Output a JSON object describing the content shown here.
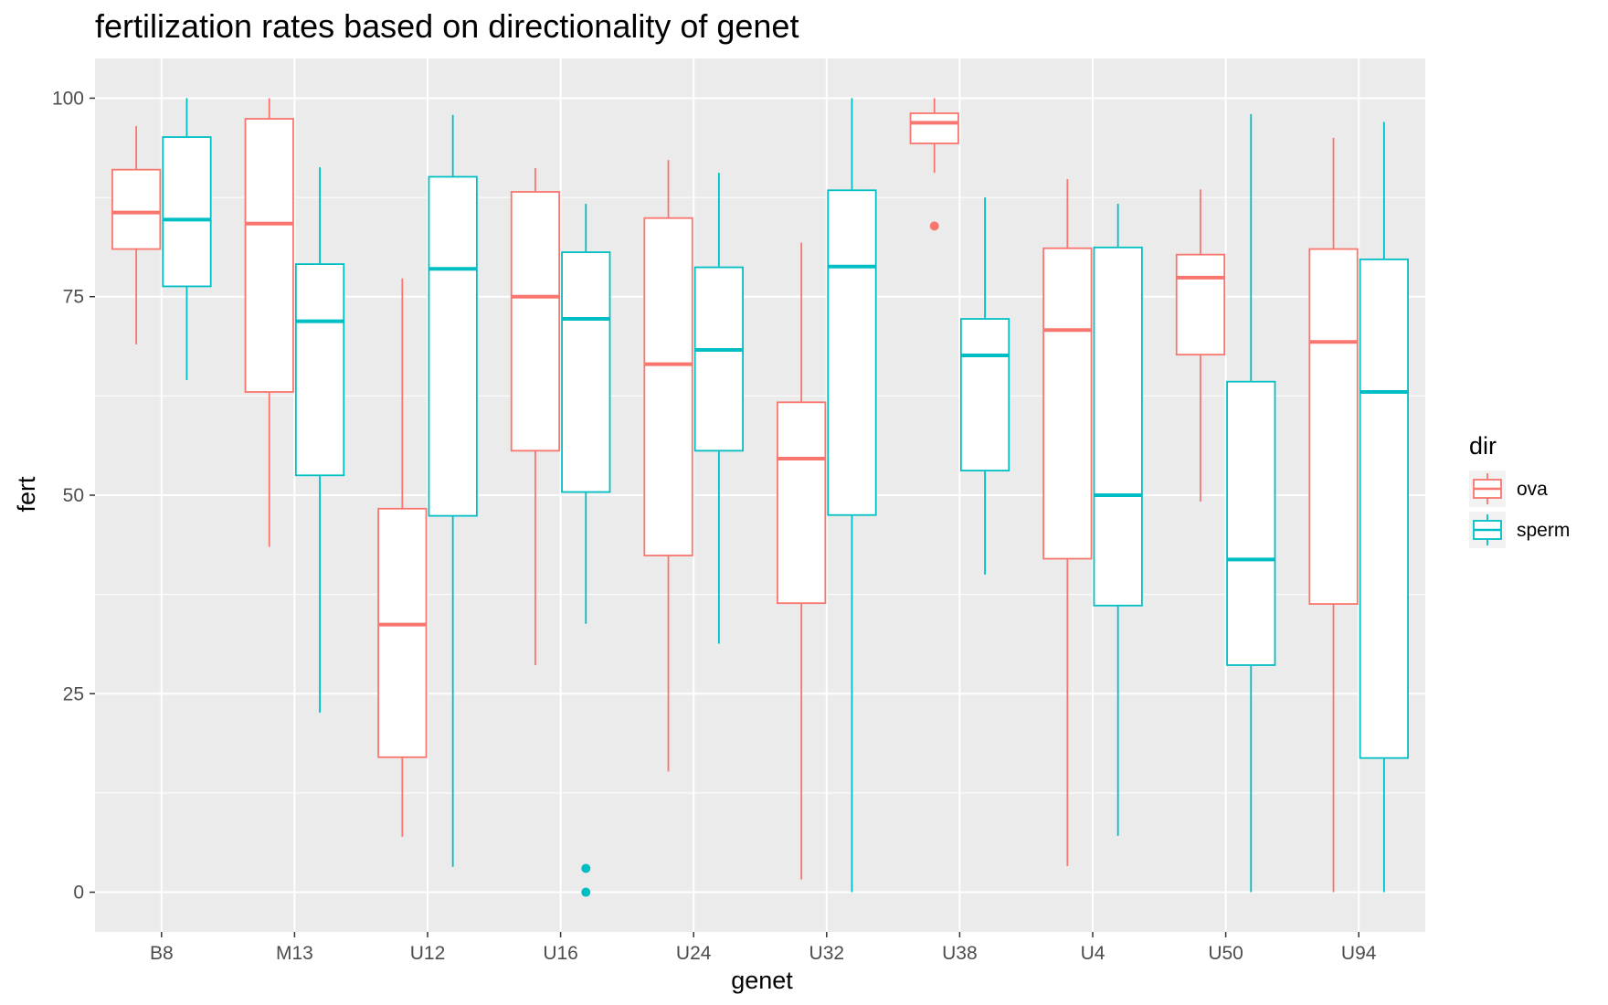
{
  "chart_data": {
    "type": "boxplot",
    "title": "fertilization rates based on directionality of genet",
    "xlabel": "genet",
    "ylabel": "fert",
    "ylim": [
      -5,
      105
    ],
    "yticks": [
      0,
      25,
      50,
      75,
      100
    ],
    "grid": true,
    "legend": {
      "title": "dir",
      "placement": "right",
      "entries": [
        "ova",
        "sperm"
      ]
    },
    "categories": [
      "B8",
      "M13",
      "U12",
      "U16",
      "U24",
      "U32",
      "U38",
      "U4",
      "U50",
      "U94"
    ],
    "series": [
      {
        "name": "ova",
        "color": "#F8766D",
        "boxes": [
          {
            "min": 69,
            "q1": 81,
            "median": 85.6,
            "q3": 91,
            "max": 96.5,
            "outliers": []
          },
          {
            "min": 43.5,
            "q1": 63,
            "median": 84.2,
            "q3": 97.4,
            "max": 100,
            "outliers": []
          },
          {
            "min": 7,
            "q1": 17,
            "median": 33.7,
            "q3": 48.3,
            "max": 77.3,
            "outliers": []
          },
          {
            "min": 28.6,
            "q1": 55.6,
            "median": 75,
            "q3": 88.2,
            "max": 91.2,
            "outliers": []
          },
          {
            "min": 15.2,
            "q1": 42.4,
            "median": 66.5,
            "q3": 84.9,
            "max": 92.2,
            "outliers": []
          },
          {
            "min": 1.6,
            "q1": 36.4,
            "median": 54.6,
            "q3": 61.7,
            "max": 81.8,
            "outliers": []
          },
          {
            "min": 90.6,
            "q1": 94.3,
            "median": 96.9,
            "q3": 98.1,
            "max": 100,
            "outliers": [
              83.9
            ]
          },
          {
            "min": 3.3,
            "q1": 42,
            "median": 70.8,
            "q3": 81.1,
            "max": 89.8,
            "outliers": []
          },
          {
            "min": 49.2,
            "q1": 67.7,
            "median": 77.4,
            "q3": 80.3,
            "max": 88.5,
            "outliers": []
          },
          {
            "min": 0,
            "q1": 36.3,
            "median": 69.3,
            "q3": 81,
            "max": 95,
            "outliers": []
          }
        ]
      },
      {
        "name": "sperm",
        "color": "#00BFC4",
        "boxes": [
          {
            "min": 64.5,
            "q1": 76.3,
            "median": 84.7,
            "q3": 95.1,
            "max": 100,
            "outliers": []
          },
          {
            "min": 22.6,
            "q1": 52.5,
            "median": 71.9,
            "q3": 79.1,
            "max": 91.3,
            "outliers": []
          },
          {
            "min": 3.2,
            "q1": 47.4,
            "median": 78.5,
            "q3": 90.1,
            "max": 97.9,
            "outliers": []
          },
          {
            "min": 33.8,
            "q1": 50.4,
            "median": 72.2,
            "q3": 80.6,
            "max": 86.7,
            "outliers": [
              3,
              0
            ]
          },
          {
            "min": 31.3,
            "q1": 55.6,
            "median": 68.3,
            "q3": 78.7,
            "max": 90.6,
            "outliers": []
          },
          {
            "min": 0,
            "q1": 47.5,
            "median": 78.8,
            "q3": 88.4,
            "max": 100,
            "outliers": []
          },
          {
            "min": 40,
            "q1": 53.1,
            "median": 67.6,
            "q3": 72.2,
            "max": 87.5,
            "outliers": []
          },
          {
            "min": 7.1,
            "q1": 36.1,
            "median": 50,
            "q3": 81.2,
            "max": 86.7,
            "outliers": []
          },
          {
            "min": 0,
            "q1": 28.6,
            "median": 41.9,
            "q3": 64.3,
            "max": 98,
            "outliers": []
          },
          {
            "min": 0,
            "q1": 16.9,
            "median": 63,
            "q3": 79.7,
            "max": 97,
            "outliers": []
          }
        ]
      }
    ]
  }
}
